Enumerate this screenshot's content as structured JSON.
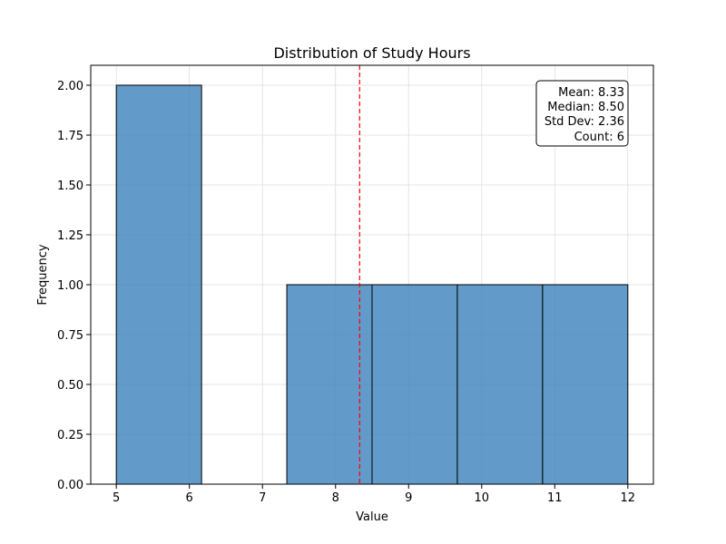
{
  "chart_data": {
    "type": "bar",
    "title": "Distribution of Study Hours",
    "xlabel": "Value",
    "ylabel": "Frequency",
    "xlim": [
      4.65,
      12.35
    ],
    "ylim": [
      0,
      2.1
    ],
    "xticks": [
      "5",
      "6",
      "7",
      "8",
      "9",
      "10",
      "11",
      "12"
    ],
    "yticks": [
      "0.00",
      "0.25",
      "0.50",
      "0.75",
      "1.00",
      "1.25",
      "1.50",
      "1.75",
      "2.00"
    ],
    "grid": true,
    "bins": [
      {
        "start": 5.0,
        "end": 6.1667,
        "count": 2
      },
      {
        "start": 6.1667,
        "end": 7.3333,
        "count": 0
      },
      {
        "start": 7.3333,
        "end": 8.5,
        "count": 1
      },
      {
        "start": 8.5,
        "end": 9.6667,
        "count": 1
      },
      {
        "start": 9.6667,
        "end": 10.8333,
        "count": 1
      },
      {
        "start": 10.8333,
        "end": 12.0,
        "count": 1
      }
    ],
    "mean_line": 8.33,
    "stats_box": {
      "placement": "top-right",
      "lines": [
        "Mean: 8.33",
        "Median: 8.50",
        "Std Dev: 2.36",
        "Count: 6"
      ]
    },
    "colors": {
      "bar_fill": "#3b82bd",
      "bar_edge": "#000000",
      "mean_line": "#ff0000",
      "grid": "#dddddd"
    }
  }
}
